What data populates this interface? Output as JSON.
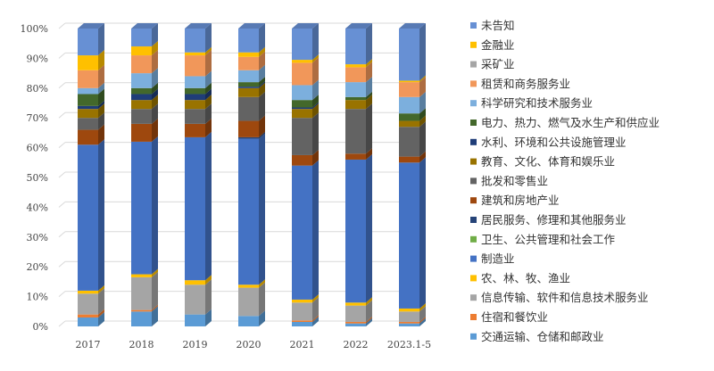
{
  "chart_data": {
    "type": "bar",
    "stacked": true,
    "percent": true,
    "categories": [
      "2017",
      "2018",
      "2019",
      "2020",
      "2021",
      "2022",
      "2023.1-5"
    ],
    "y_ticks": [
      "0%",
      "10%",
      "20%",
      "30%",
      "40%",
      "50%",
      "60%",
      "70%",
      "80%",
      "90%",
      "100%"
    ],
    "ylim": [
      0,
      100
    ],
    "legend_position": "right",
    "series": [
      {
        "name": "未告知",
        "color": "#6790d4",
        "values": [
          9,
          6,
          8,
          8,
          10.5,
          12,
          17.5
        ]
      },
      {
        "name": "金融业",
        "color": "#ffc000",
        "values": [
          5,
          3,
          1,
          1.5,
          1,
          1,
          0.5
        ]
      },
      {
        "name": "采矿业",
        "color": "#a5a5a5",
        "values": [
          0,
          0,
          0,
          0,
          0,
          0,
          0
        ]
      },
      {
        "name": "租赁和商务服务业",
        "color": "#f1975a",
        "values": [
          6,
          6,
          7,
          4.5,
          7.5,
          5,
          5
        ]
      },
      {
        "name": "科学研究和技术服务业",
        "color": "#7cafdd",
        "values": [
          2,
          5,
          4,
          4,
          5,
          5,
          5.5
        ]
      },
      {
        "name": "电力、热力、燃气及水生产和供应业",
        "color": "#43682b",
        "values": [
          4,
          2,
          2,
          1.5,
          2.5,
          1,
          2.5
        ]
      },
      {
        "name": "水利、环境和公共设施管理业",
        "color": "#1f3d78",
        "values": [
          1,
          2,
          2,
          0.5,
          0.5,
          0,
          0
        ]
      },
      {
        "name": "教育、文化、体育和娱乐业",
        "color": "#997300",
        "values": [
          3,
          3,
          3,
          3,
          3,
          3,
          2
        ]
      },
      {
        "name": "批发和零售业",
        "color": "#636363",
        "values": [
          4,
          5,
          5,
          8,
          12.5,
          15,
          10
        ]
      },
      {
        "name": "建筑和房地产业",
        "color": "#9e480e",
        "values": [
          5,
          6,
          4.5,
          5.5,
          3.5,
          2,
          2
        ]
      },
      {
        "name": "居民服务、修理和其他服务业",
        "color": "#264478",
        "values": [
          0,
          0,
          0,
          0.5,
          0,
          0,
          0
        ]
      },
      {
        "name": "卫生、公共管理和社会工作",
        "color": "#70ad47",
        "values": [
          0,
          0,
          0,
          0,
          0,
          0,
          0
        ]
      },
      {
        "name": "制造业",
        "color": "#4472c4",
        "values": [
          49,
          44.5,
          48,
          49,
          45,
          48,
          49
        ]
      },
      {
        "name": "农、林、牧、渔业",
        "color": "#ffc000",
        "values": [
          1,
          1,
          1.5,
          1,
          1,
          1,
          1
        ]
      },
      {
        "name": "信息传输、软件和信息技术服务业",
        "color": "#a5a5a5",
        "values": [
          7,
          11,
          10,
          9.5,
          6,
          5.5,
          3.5
        ]
      },
      {
        "name": "住宿和餐饮业",
        "color": "#ed7d31",
        "values": [
          1,
          0.5,
          0,
          0,
          0.5,
          0.5,
          0.5
        ]
      },
      {
        "name": "交通运输、仓储和邮政业",
        "color": "#5b9bd5",
        "values": [
          3,
          5,
          4,
          3.5,
          1.5,
          1,
          1
        ]
      }
    ]
  }
}
